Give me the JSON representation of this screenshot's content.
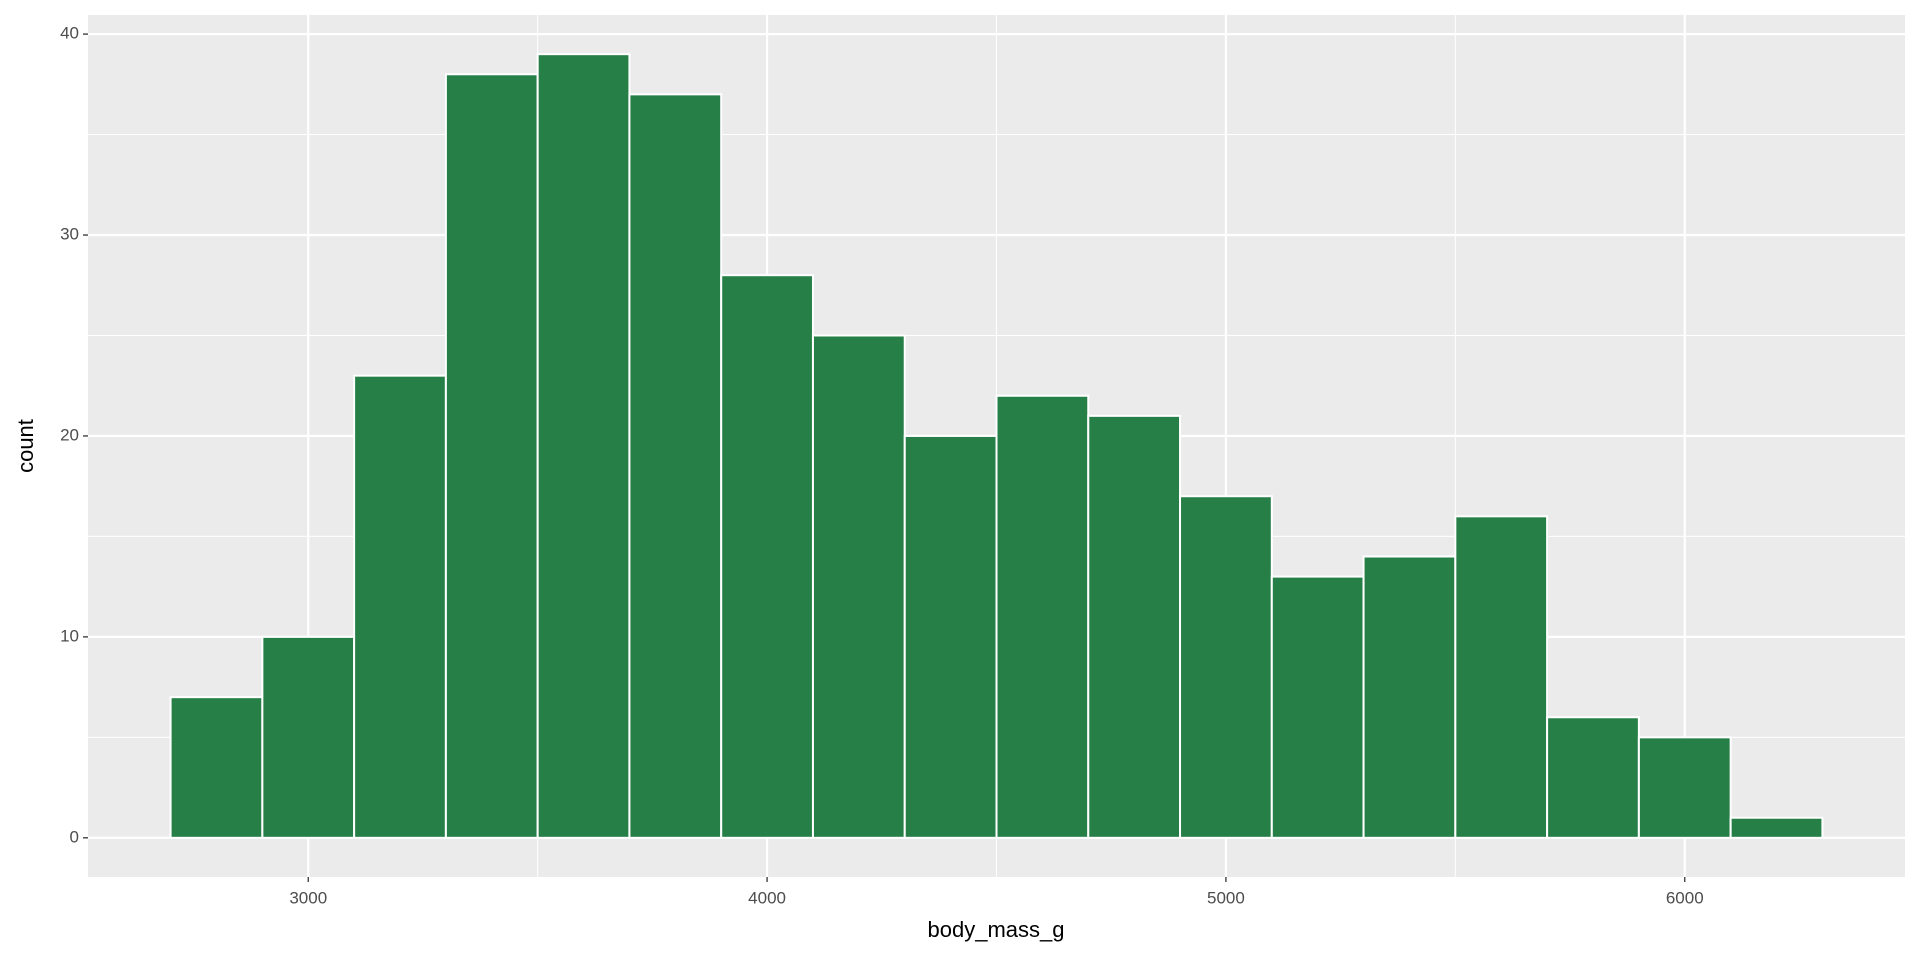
{
  "chart_data": {
    "type": "histogram",
    "x_label": "body_mass_g",
    "y_label": "count",
    "bins": [
      2700,
      2900,
      3100,
      3300,
      3500,
      3700,
      3900,
      4100,
      4300,
      4500,
      4700,
      4900,
      5100,
      5300,
      5500,
      5700,
      5900,
      6100,
      6300
    ],
    "values": [
      7,
      10,
      23,
      38,
      39,
      37,
      28,
      25,
      20,
      22,
      21,
      17,
      13,
      14,
      16,
      6,
      5,
      1
    ],
    "color": "#277f48",
    "xlim": [
      2520,
      6480
    ],
    "xticks": [
      3000,
      4000,
      5000,
      6000
    ],
    "ylim": [
      -1.95,
      40.95
    ],
    "yticks": [
      0,
      10,
      20,
      30,
      40
    ],
    "grid": true
  }
}
